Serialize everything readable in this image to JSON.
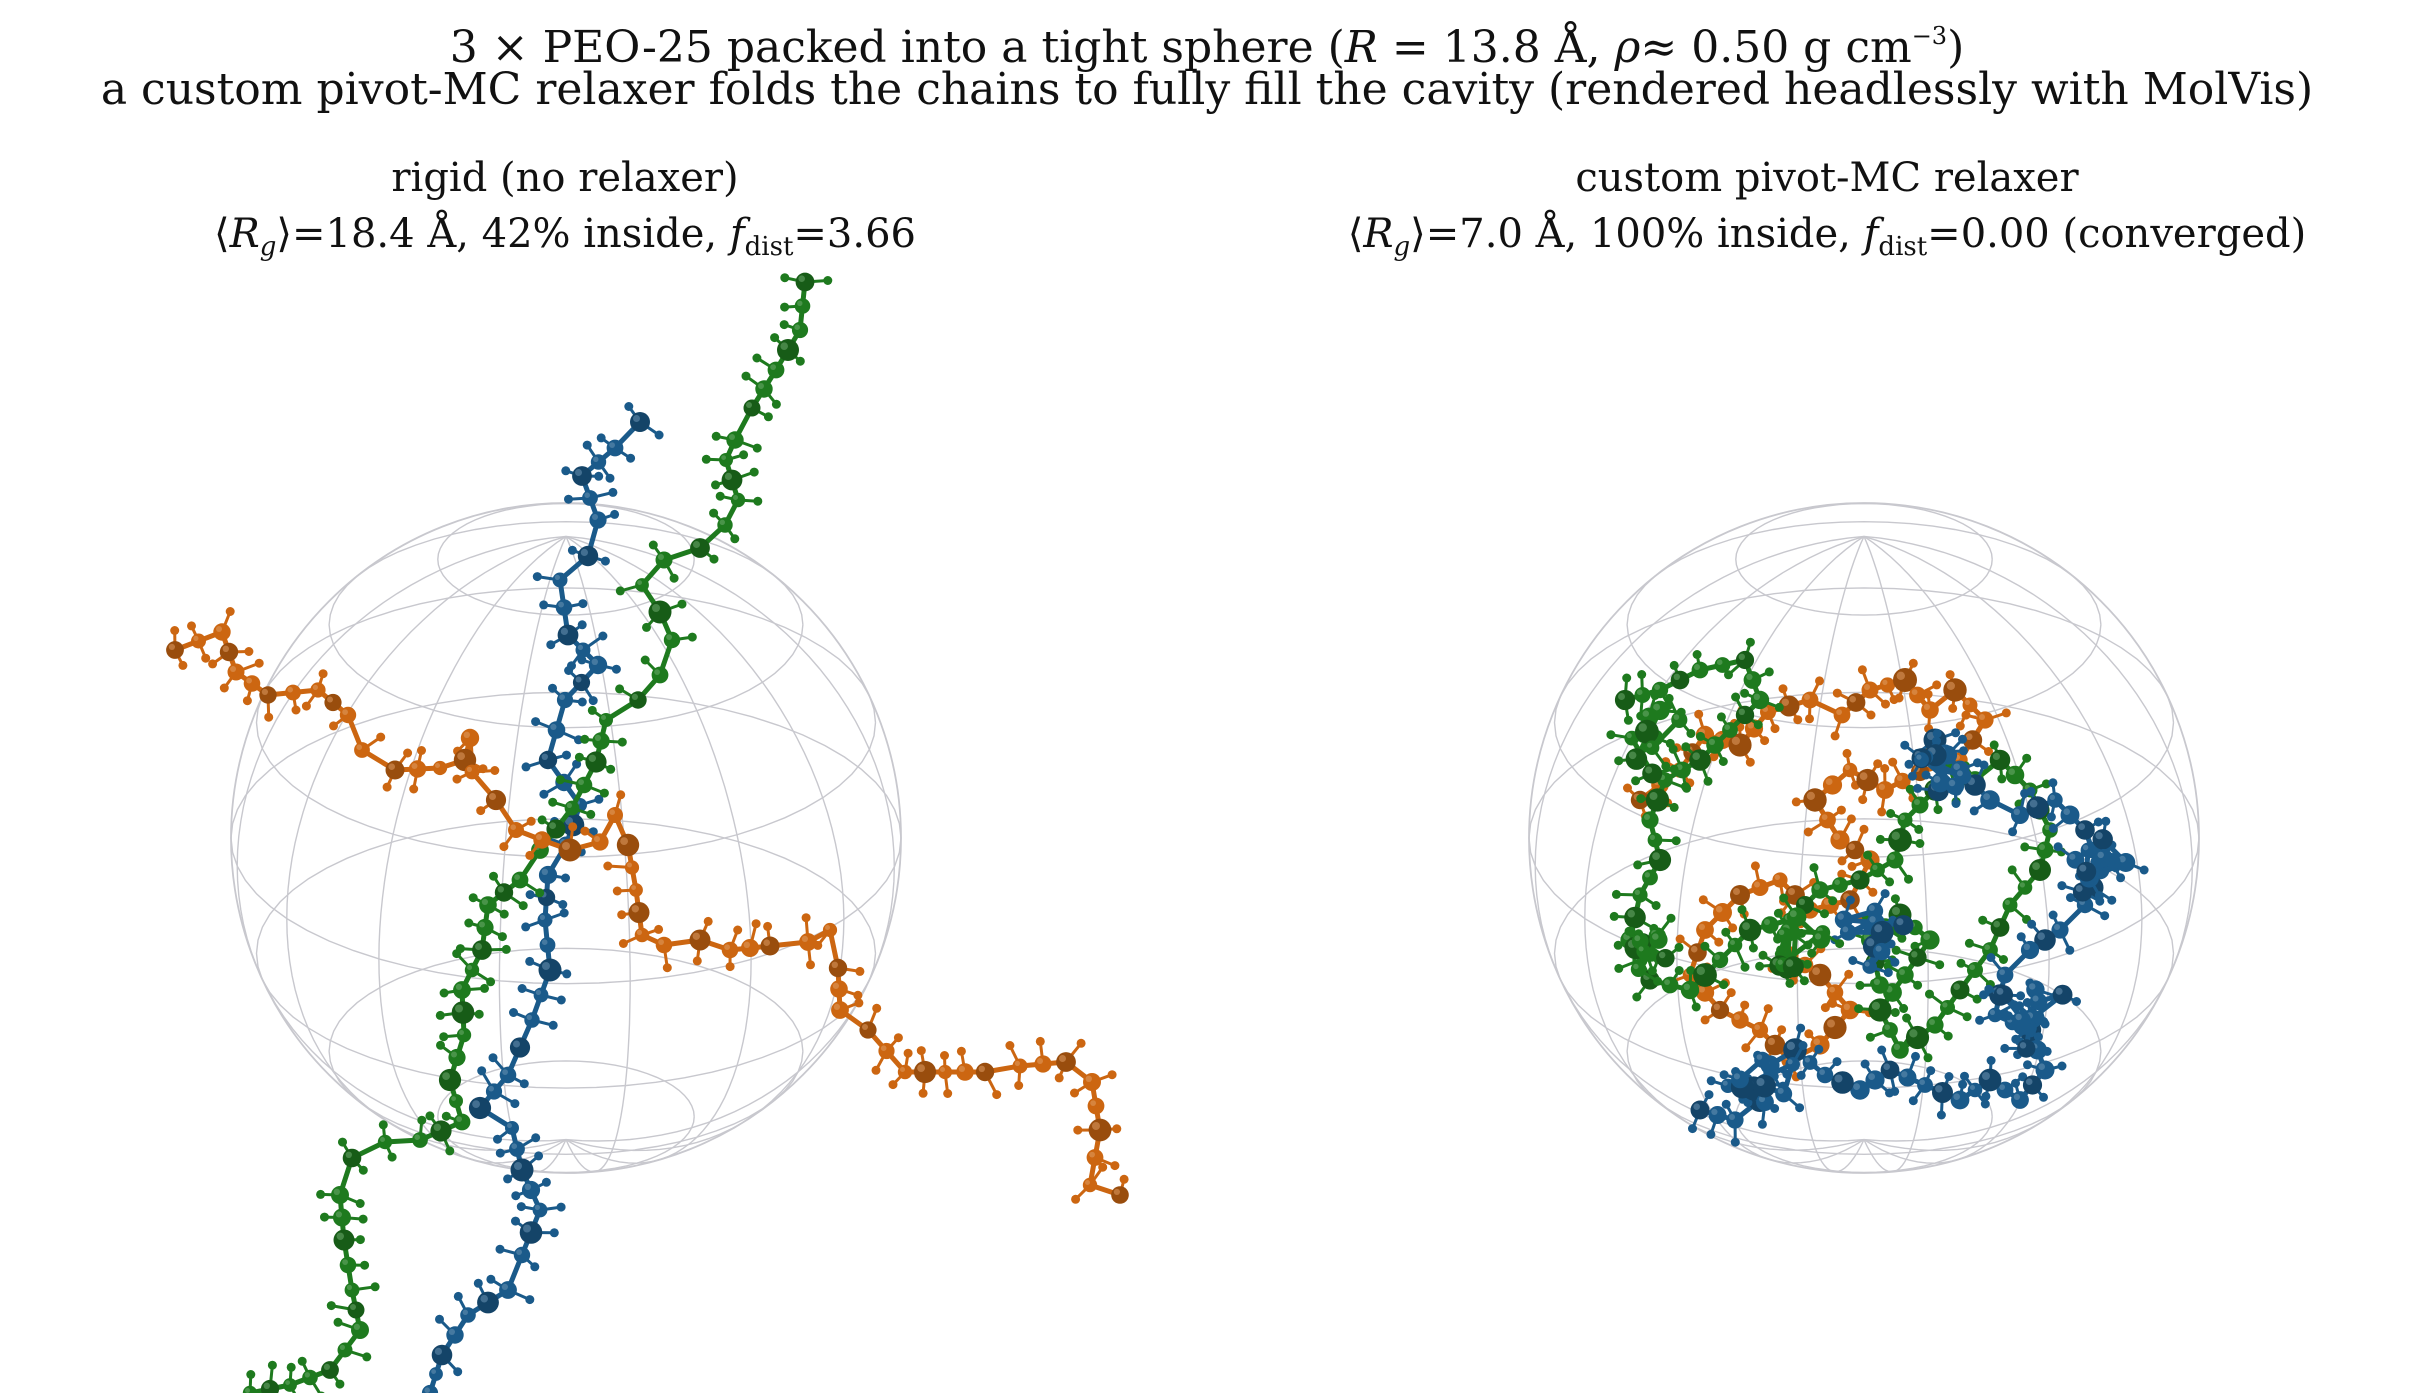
{
  "title": {
    "lead": "3 × PEO-25 packed into a tight sphere (",
    "r_sym": "R",
    "r_val": " = 13.8 ",
    "angstrom": "Å",
    "sep": ", ",
    "rho_sym": "ρ",
    "rho_val": "≈  0.50 g cm",
    "exp": "−3",
    "close": ")",
    "line2": "a custom pivot-MC relaxer folds the chains to fully fill the cavity (rendered headlessly with MolVis)"
  },
  "panels": [
    {
      "title": "rigid (no relaxer)",
      "rg_open": "⟨",
      "rg_sym": "R",
      "rg_sub": "g",
      "rg_close": "⟩",
      "rg_val": "=18.4 ",
      "unit": "Å",
      "inside": ", 42% inside, ",
      "f_sym": "f",
      "f_sub": "dist",
      "f_val": "=3.66",
      "suffix": ""
    },
    {
      "title": "custom pivot-MC relaxer",
      "rg_open": "⟨",
      "rg_sym": "R",
      "rg_sub": "g",
      "rg_close": "⟩",
      "rg_val": "=7.0 ",
      "unit": "Å",
      "inside": ", 100% inside, ",
      "f_sym": "f",
      "f_sub": "dist",
      "f_val": "=0.00",
      "suffix": " (converged)"
    }
  ],
  "colors": {
    "chain1": "#1a5a8a",
    "chain2": "#cc6611",
    "chain3": "#1e7a1e",
    "sphere_wire": "#c8c8ce"
  }
}
